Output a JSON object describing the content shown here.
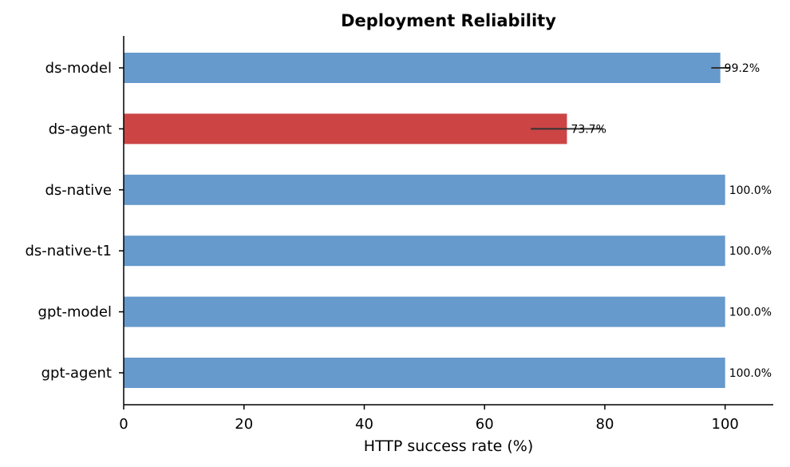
{
  "chart_data": {
    "type": "bar",
    "orientation": "horizontal",
    "title": "Deployment Reliability",
    "xlabel": "HTTP success rate (%)",
    "ylabel": "",
    "xlim": [
      0,
      108
    ],
    "xticks": [
      0,
      20,
      40,
      60,
      80,
      100
    ],
    "xtick_labels": [
      "0",
      "20",
      "40",
      "60",
      "80",
      "100"
    ],
    "categories": [
      "ds-model",
      "ds-agent",
      "ds-native",
      "ds-native-t1",
      "gpt-model",
      "gpt-agent"
    ],
    "values": [
      99.2,
      73.7,
      100.0,
      100.0,
      100.0,
      100.0
    ],
    "value_labels": [
      "99.2%",
      "73.7%",
      "100.0%",
      "100.0%",
      "100.0%",
      "100.0%"
    ],
    "errors": [
      1.5,
      6.0,
      null,
      null,
      null,
      null
    ],
    "colors": [
      "#6699cc",
      "#cc4444",
      "#6699cc",
      "#6699cc",
      "#6699cc",
      "#6699cc"
    ],
    "error_color": "#333333",
    "grid": false,
    "legend": "none"
  }
}
